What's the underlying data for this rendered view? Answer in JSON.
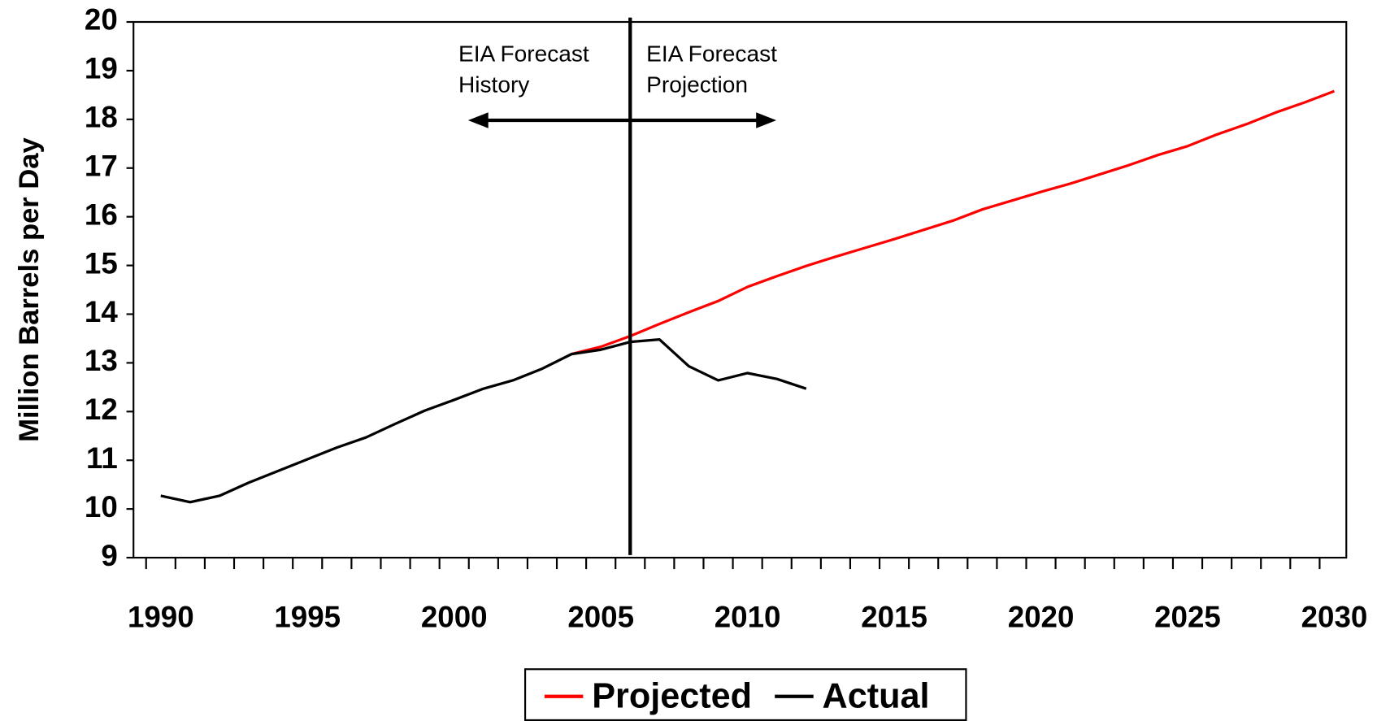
{
  "chart_data": {
    "type": "line",
    "y_label": "Million Barrels per Day",
    "x": [
      1990,
      1991,
      1992,
      1993,
      1994,
      1995,
      1996,
      1997,
      1998,
      1999,
      2000,
      2001,
      2002,
      2003,
      2004,
      2005,
      2006,
      2007,
      2008,
      2009,
      2010,
      2011,
      2012,
      2013,
      2014,
      2015,
      2016,
      2017,
      2018,
      2019,
      2020,
      2021,
      2022,
      2023,
      2024,
      2025,
      2026,
      2027,
      2028,
      2029,
      2030
    ],
    "series": [
      {
        "name": "Projected",
        "color": "#ff0000",
        "values": [
          null,
          null,
          null,
          null,
          null,
          null,
          null,
          null,
          null,
          null,
          null,
          null,
          null,
          null,
          13.18,
          13.33,
          13.55,
          13.8,
          14.04,
          14.27,
          14.56,
          14.78,
          14.99,
          15.18,
          15.36,
          15.54,
          15.73,
          15.92,
          16.15,
          16.33,
          16.51,
          16.68,
          16.87,
          17.06,
          17.27,
          17.45,
          17.69,
          17.9,
          18.14,
          18.35,
          18.58
        ]
      },
      {
        "name": "Actual",
        "color": "#000000",
        "values": [
          10.27,
          10.14,
          10.27,
          10.54,
          10.78,
          11.02,
          11.26,
          11.47,
          11.75,
          12.02,
          12.24,
          12.47,
          12.64,
          12.88,
          13.18,
          13.27,
          13.43,
          13.48,
          12.93,
          12.64,
          12.79,
          12.67,
          12.47,
          null,
          null,
          null,
          null,
          null,
          null,
          null,
          null,
          null,
          null,
          null,
          null,
          null,
          null,
          null,
          null,
          null,
          null
        ]
      }
    ],
    "xlim": [
      1989.07,
      2030.41
    ],
    "xticks": [
      1990,
      1995,
      2000,
      2005,
      2010,
      2015,
      2020,
      2025,
      2030
    ],
    "ylim": [
      9,
      20
    ],
    "yticks": [
      9,
      10,
      11,
      12,
      13,
      14,
      15,
      16,
      17,
      18,
      19,
      20
    ],
    "forecast_year": 2006,
    "annotations": [
      [
        "EIA Forecast",
        "History"
      ],
      [
        "EIA Forecast",
        "Projection"
      ]
    ],
    "legend": "bottom"
  }
}
